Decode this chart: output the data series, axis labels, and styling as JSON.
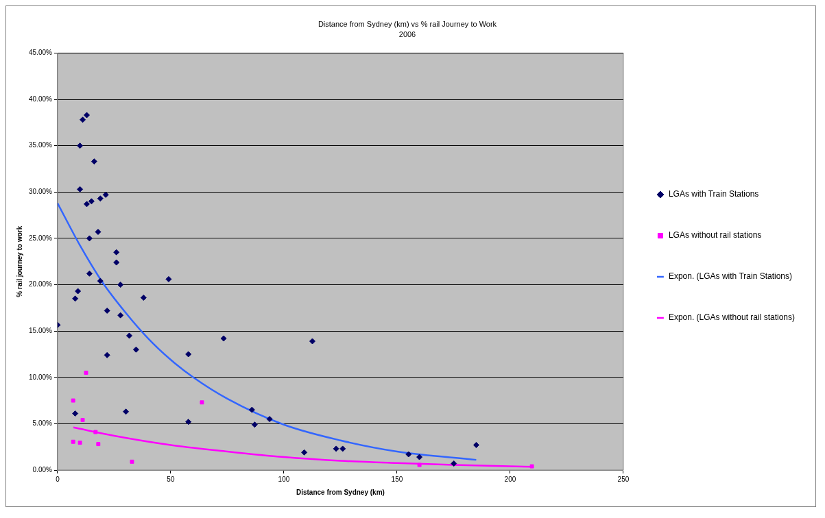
{
  "chart_data": {
    "type": "scatter",
    "title": "Distance from Sydney (km) vs % rail Journey to Work",
    "subtitle": "2006",
    "xlabel": "Distance from Sydney (km)",
    "ylabel": "% rail journey to work",
    "xlim": [
      0,
      250
    ],
    "xticks": [
      0,
      50,
      100,
      150,
      200,
      250
    ],
    "ylim": [
      0,
      45
    ],
    "yticks": [
      {
        "value": 0,
        "label": "0.00%"
      },
      {
        "value": 5,
        "label": "5.00%"
      },
      {
        "value": 10,
        "label": "10.00%"
      },
      {
        "value": 15,
        "label": "15.00%"
      },
      {
        "value": 20,
        "label": "20.00%"
      },
      {
        "value": 25,
        "label": "25.00%"
      },
      {
        "value": 30,
        "label": "30.00%"
      },
      {
        "value": 35,
        "label": "35.00%"
      },
      {
        "value": 40,
        "label": "40.00%"
      },
      {
        "value": 45,
        "label": "45.00%"
      }
    ],
    "grid": "y",
    "legend": "right",
    "series": [
      {
        "name": "LGAs with Train Stations",
        "color": "#000066",
        "marker": "diamond",
        "x": [
          0,
          11.1,
          12.9,
          9.9,
          16.2,
          9.9,
          12.9,
          15.0,
          18.9,
          21.3,
          17.9,
          14.1,
          14.1,
          18.9,
          7.8,
          9.0,
          26.0,
          26.0,
          27.8,
          49.1,
          38.0,
          21.9,
          27.8,
          31.7,
          34.7,
          21.9,
          57.8,
          73.4,
          112.6,
          30.2,
          7.8,
          57.8,
          85.9,
          87.1,
          93.7,
          109.0,
          123.1,
          126.0,
          155.1,
          159.9,
          175.1,
          185.0
        ],
        "values": [
          15.65,
          37.8,
          38.3,
          35.0,
          33.3,
          30.3,
          28.7,
          29.0,
          29.3,
          29.7,
          25.7,
          25.0,
          21.2,
          20.4,
          18.5,
          19.3,
          23.5,
          22.4,
          20.0,
          20.6,
          18.6,
          17.2,
          16.7,
          14.5,
          13.0,
          12.4,
          12.5,
          14.2,
          13.9,
          6.3,
          6.1,
          5.2,
          6.5,
          4.9,
          5.5,
          1.9,
          2.3,
          2.3,
          1.7,
          1.4,
          0.7,
          2.7
        ]
      },
      {
        "name": "LGAs without rail stations",
        "color": "#ff00ff",
        "marker": "square",
        "x": [
          6.9,
          12.6,
          6.9,
          9.9,
          11.1,
          16.8,
          18.0,
          32.9,
          63.8,
          159.9,
          209.6
        ],
        "values": [
          7.5,
          10.5,
          3.05,
          2.95,
          5.4,
          4.1,
          2.8,
          0.9,
          7.3,
          0.55,
          0.4
        ]
      },
      {
        "name": "Expon. (LGAs with Train Stations)",
        "type": "line",
        "color": "#3366ff",
        "marker": "none",
        "x": [
          0,
          10,
          20,
          30,
          40,
          50,
          60,
          75,
          100,
          125,
          150,
          185
        ],
        "values": [
          28.8,
          24.2,
          20.2,
          17.0,
          14.2,
          11.9,
          10.0,
          7.7,
          4.9,
          3.2,
          2.0,
          1.1
        ]
      },
      {
        "name": "Expon. (LGAs without rail stations)",
        "type": "line",
        "color": "#ff00ff",
        "marker": "none",
        "x": [
          7,
          25,
          50,
          75,
          100,
          125,
          150,
          175,
          210
        ],
        "values": [
          4.6,
          3.7,
          2.7,
          2.0,
          1.4,
          1.0,
          0.75,
          0.55,
          0.35
        ]
      }
    ]
  }
}
